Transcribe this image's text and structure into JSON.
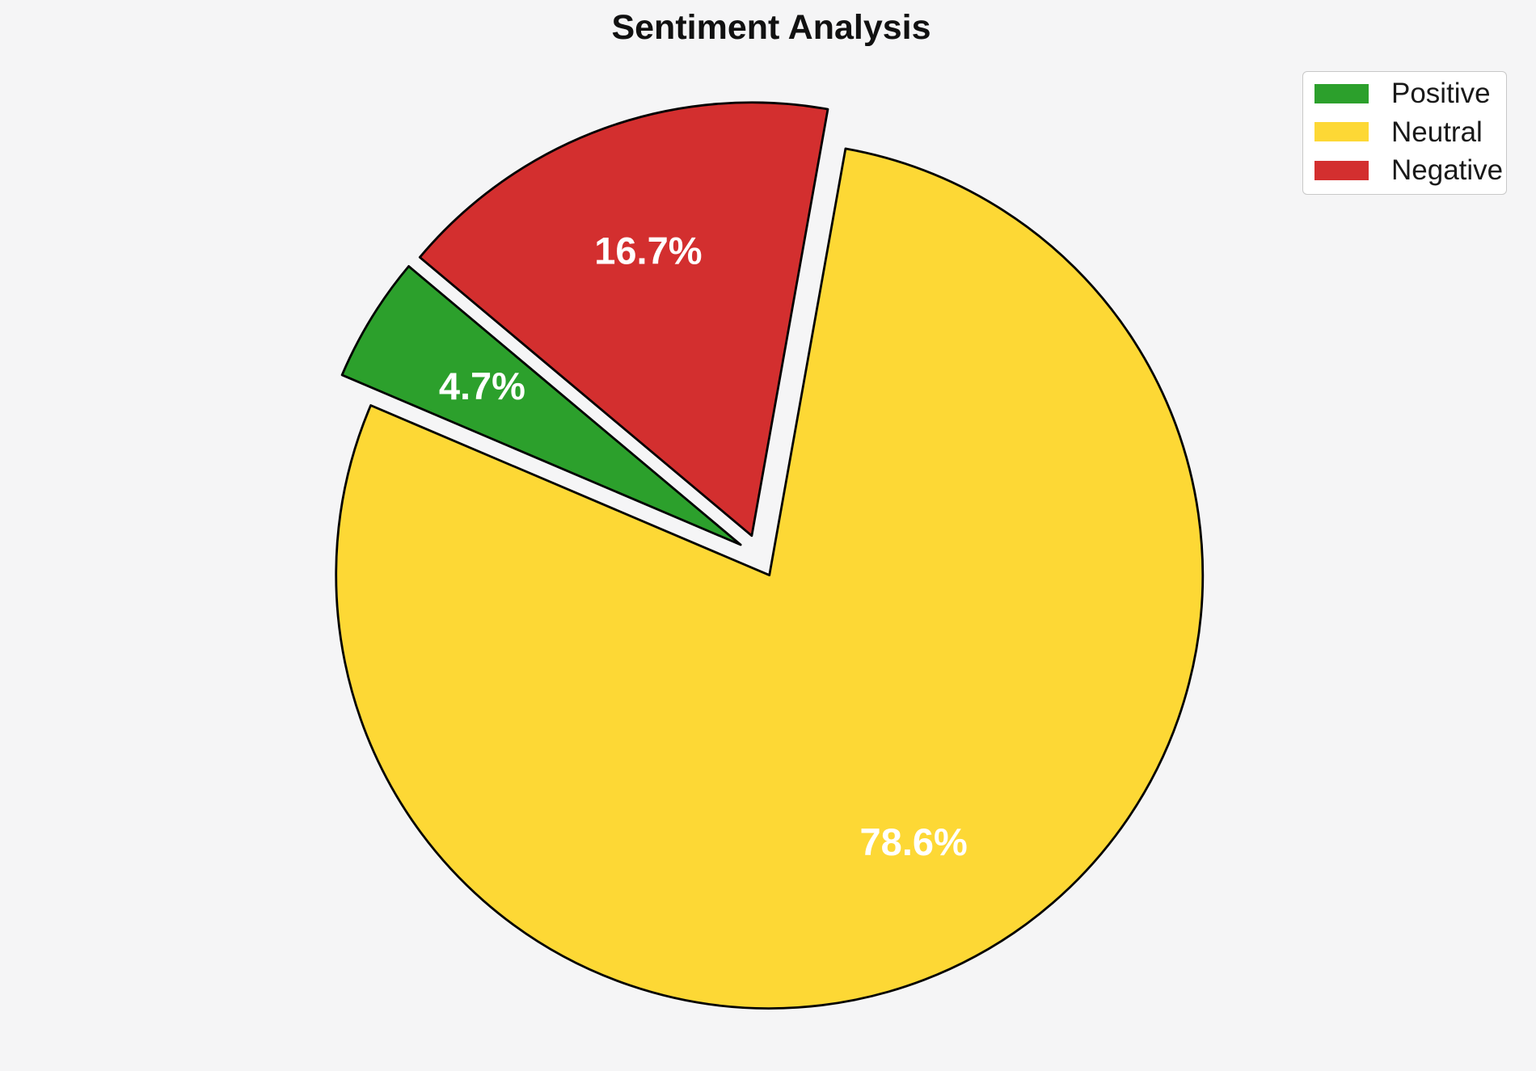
{
  "chart_data": {
    "type": "pie",
    "title": "Sentiment Analysis",
    "categories": [
      "Positive",
      "Neutral",
      "Negative"
    ],
    "values": [
      4.7,
      78.6,
      16.7
    ],
    "value_labels": [
      "4.7%",
      "78.6%",
      "16.7%"
    ],
    "colors": [
      "#2ca02c",
      "#fdd835",
      "#d32f2f"
    ],
    "start_angle": 140,
    "direction": "counterclockwise",
    "explode": 0.05,
    "pct_distance": 0.7,
    "edge_color": "#000000",
    "background": "#f5f5f6",
    "inside_label_color": "#ffffff",
    "legend": {
      "position": "upper-right",
      "entries": [
        {
          "label": "Positive",
          "color": "#2ca02c"
        },
        {
          "label": "Neutral",
          "color": "#fdd835"
        },
        {
          "label": "Negative",
          "color": "#d32f2f"
        }
      ]
    }
  }
}
